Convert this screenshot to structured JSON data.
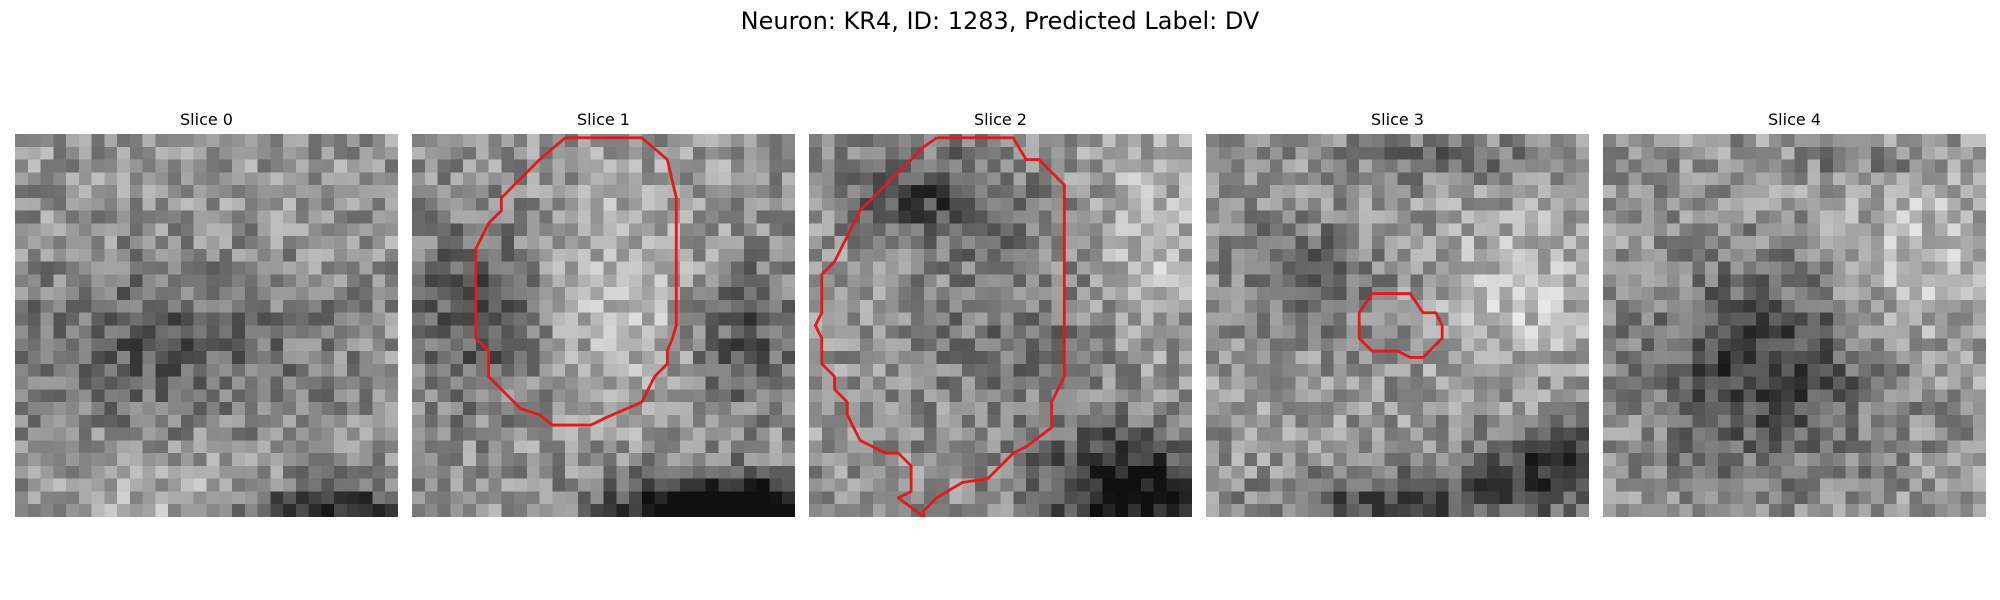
{
  "figure": {
    "title": "Neuron: KR4, ID: 1283, Predicted Label: DV"
  },
  "panels": [
    {
      "label": "Slice 0",
      "seed": 11,
      "contour": null,
      "structure": {
        "dark": [
          [
            0.35,
            0.55,
            0.45,
            0.22,
            -60
          ]
        ],
        "light": [
          [
            0.45,
            1.05,
            0.25,
            0.2,
            55
          ]
        ],
        "cornerDark": [
          0.8,
          0.98,
          0.3,
          0.08,
          -120
        ]
      }
    },
    {
      "label": "Slice 1",
      "seed": 23,
      "contour": [
        [
          15,
          0.3
        ],
        [
          18,
          0.3
        ],
        [
          20,
          2
        ],
        [
          20.7,
          5
        ],
        [
          20.7,
          15
        ],
        [
          20.4,
          16
        ],
        [
          20,
          17
        ],
        [
          20,
          18
        ],
        [
          19,
          19
        ],
        [
          18,
          21
        ],
        [
          15,
          22.3
        ],
        [
          14,
          22.8
        ],
        [
          11,
          22.8
        ],
        [
          10,
          22
        ],
        [
          8.5,
          21.5
        ],
        [
          6,
          19
        ],
        [
          6,
          17
        ],
        [
          5,
          16
        ],
        [
          5,
          9
        ],
        [
          6,
          7
        ],
        [
          7,
          6
        ],
        [
          7,
          5
        ],
        [
          10,
          2
        ],
        [
          12,
          0.3
        ]
      ],
      "structure": {
        "dark": [
          [
            0.15,
            0.45,
            0.18,
            0.25,
            -70
          ],
          [
            0.85,
            0.5,
            0.15,
            0.2,
            -70
          ],
          [
            0.8,
            0.95,
            0.25,
            0.08,
            -120
          ]
        ],
        "light": [
          [
            0.55,
            0.4,
            0.25,
            0.25,
            40
          ]
        ],
        "cornerDark": [
          0.8,
          0.98,
          0.3,
          0.08,
          -120
        ]
      }
    },
    {
      "label": "Slice 2",
      "seed": 37,
      "contour": [
        [
          10,
          0.3
        ],
        [
          16,
          0.3
        ],
        [
          17,
          2
        ],
        [
          18,
          2
        ],
        [
          20,
          4
        ],
        [
          20,
          19
        ],
        [
          19,
          21
        ],
        [
          19,
          23
        ],
        [
          17,
          24.5
        ],
        [
          16,
          25
        ],
        [
          14,
          27
        ],
        [
          12,
          27.3
        ],
        [
          10,
          28.5
        ],
        [
          9,
          29.5
        ],
        [
          9,
          30
        ]
      ],
      "contourB": [
        [
          9,
          30
        ],
        [
          7,
          28.5
        ],
        [
          8,
          28
        ],
        [
          8,
          26
        ],
        [
          7,
          25
        ],
        [
          6,
          25
        ],
        [
          4,
          24
        ],
        [
          3,
          22
        ],
        [
          3,
          21
        ],
        [
          2,
          20
        ],
        [
          2,
          19
        ],
        [
          1,
          18
        ],
        [
          1,
          16
        ],
        [
          0.5,
          15
        ],
        [
          1,
          14
        ],
        [
          1,
          11
        ],
        [
          2,
          10
        ],
        [
          3,
          8
        ],
        [
          4,
          6
        ],
        [
          5,
          5
        ],
        [
          6,
          4
        ],
        [
          7,
          3
        ],
        [
          8,
          2
        ],
        [
          9,
          1
        ],
        [
          10,
          0.3
        ]
      ],
      "structure": {
        "dark": [
          [
            0.3,
            0.15,
            0.2,
            0.12,
            -80
          ],
          [
            0.55,
            0.5,
            0.3,
            0.3,
            -35
          ],
          [
            0.8,
            0.85,
            0.2,
            0.12,
            -80
          ]
        ],
        "light": [
          [
            0.85,
            0.3,
            0.15,
            0.25,
            45
          ]
        ],
        "cornerDark": [
          0.85,
          0.95,
          0.25,
          0.1,
          -100
        ]
      }
    },
    {
      "label": "Slice 3",
      "seed": 53,
      "contour": [
        [
          15,
          12.5
        ],
        [
          16,
          12.5
        ],
        [
          17,
          14
        ],
        [
          18,
          14
        ],
        [
          18.5,
          15
        ],
        [
          18.5,
          16
        ],
        [
          17,
          17.5
        ],
        [
          16,
          17.5
        ],
        [
          15,
          17
        ],
        [
          13,
          17
        ],
        [
          12,
          16
        ],
        [
          12,
          14
        ],
        [
          13,
          12.5
        ]
      ],
      "structure": {
        "dark": [
          [
            0.25,
            0.35,
            0.2,
            0.15,
            -45
          ],
          [
            0.5,
            0.95,
            0.3,
            0.08,
            -90
          ],
          [
            0.9,
            0.85,
            0.2,
            0.1,
            -100
          ]
        ],
        "light": [
          [
            0.8,
            0.4,
            0.2,
            0.2,
            45
          ]
        ],
        "cornerDark": [
          0.6,
          0.05,
          0.25,
          0.05,
          -50
        ]
      }
    },
    {
      "label": "Slice 4",
      "seed": 71,
      "contour": null,
      "structure": {
        "dark": [
          [
            0.4,
            0.6,
            0.3,
            0.25,
            -90
          ]
        ],
        "light": [
          [
            0.8,
            0.3,
            0.2,
            0.25,
            45
          ]
        ],
        "cornerDark": [
          0.7,
          0.05,
          0.2,
          0.05,
          -40
        ]
      }
    }
  ],
  "colors": {
    "contour": "#e31a1c",
    "background": "#ffffff"
  }
}
